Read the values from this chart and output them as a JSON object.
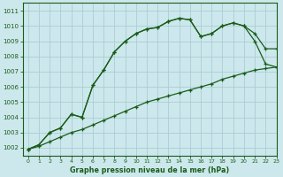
{
  "title": "Graphe pression niveau de la mer (hPa)",
  "bg_color": "#cce8ec",
  "grid_color": "#aacdd4",
  "line_color": "#1a5c1a",
  "xlim": [
    -0.5,
    23
  ],
  "ylim": [
    1001.5,
    1011.5
  ],
  "xticks": [
    0,
    1,
    2,
    3,
    4,
    5,
    6,
    7,
    8,
    9,
    10,
    11,
    12,
    13,
    14,
    15,
    16,
    17,
    18,
    19,
    20,
    21,
    22,
    23
  ],
  "yticks": [
    1002,
    1003,
    1004,
    1005,
    1006,
    1007,
    1008,
    1009,
    1010,
    1011
  ],
  "series1_x": [
    0,
    1,
    2,
    3,
    4,
    5,
    6,
    7,
    8,
    9,
    10,
    11,
    12,
    13,
    14,
    15,
    16,
    17,
    18,
    19,
    20,
    21,
    22,
    23
  ],
  "series1_y": [
    1001.9,
    1002.2,
    1003.0,
    1003.3,
    1004.2,
    1004.0,
    1006.1,
    1007.1,
    1008.3,
    1009.0,
    1009.5,
    1009.8,
    1009.9,
    1010.3,
    1010.5,
    1010.4,
    1009.3,
    1009.5,
    1010.0,
    1010.2,
    1010.0,
    1009.0,
    1007.5,
    1007.3
  ],
  "series2_x": [
    0,
    1,
    2,
    3,
    4,
    5,
    6,
    7,
    8,
    9,
    10,
    11,
    12,
    13,
    14,
    15,
    16,
    17,
    18,
    19,
    20,
    21,
    22,
    23
  ],
  "series2_y": [
    1001.9,
    1002.2,
    1003.0,
    1003.3,
    1004.2,
    1004.0,
    1006.1,
    1007.1,
    1008.3,
    1009.0,
    1009.5,
    1009.8,
    1009.9,
    1010.3,
    1010.5,
    1010.4,
    1009.3,
    1009.5,
    1010.0,
    1010.2,
    1010.0,
    1009.5,
    1008.5,
    1008.5
  ],
  "series3_x": [
    0,
    1,
    2,
    3,
    4,
    5,
    6,
    7,
    8,
    9,
    10,
    11,
    12,
    13,
    14,
    15,
    16,
    17,
    18,
    19,
    20,
    21,
    22,
    23
  ],
  "series3_y": [
    1001.9,
    1002.1,
    1002.4,
    1002.7,
    1003.0,
    1003.2,
    1003.5,
    1003.8,
    1004.1,
    1004.4,
    1004.7,
    1005.0,
    1005.2,
    1005.4,
    1005.6,
    1005.8,
    1006.0,
    1006.2,
    1006.5,
    1006.7,
    1006.9,
    1007.1,
    1007.2,
    1007.3
  ]
}
